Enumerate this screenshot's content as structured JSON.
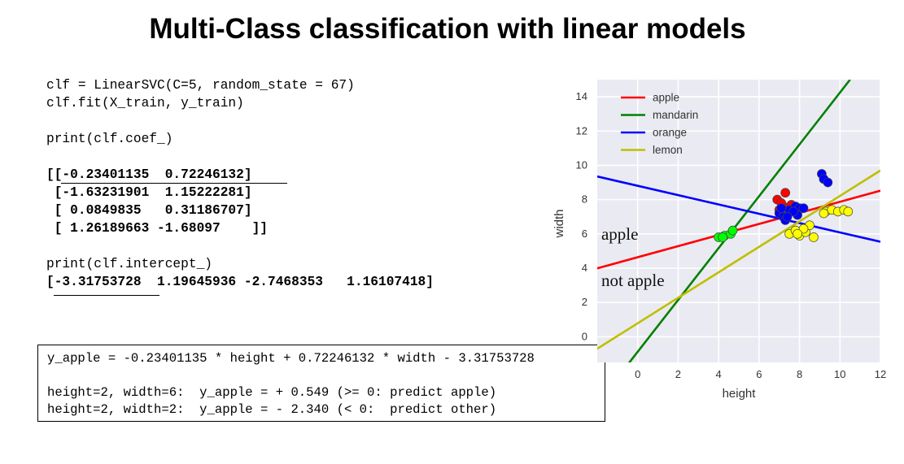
{
  "title": "Multi-Class classification with linear models",
  "code_lines": [
    "clf = LinearSVC(C=5, random_state = 67)",
    "clf.fit(X_train, y_train)",
    "",
    "print(clf.coef_)",
    "",
    "[[-0.23401135  0.72246132]",
    " [-1.63231901  1.15222281]",
    " [ 0.0849835   0.31186707]",
    " [ 1.26189663 -1.68097    ]]",
    "",
    "print(clf.intercept_)",
    "[-3.31753728  1.19645936 -2.7468353   1.16107418]"
  ],
  "equation_lines": [
    "y_apple = -0.23401135 * height + 0.72246132 * width - 3.31753728",
    "",
    "height=2, width=6:  y_apple = + 0.549 (>= 0: predict apple)",
    "height=2, width=2:  y_apple = - 2.340 (< 0:  predict other)"
  ],
  "chart_data": {
    "type": "scatter",
    "xlabel": "height",
    "ylabel": "width",
    "xlim": [
      -2.0,
      12.0
    ],
    "ylim": [
      -1.5,
      15.0
    ],
    "xticks": [
      "0",
      "2",
      "4",
      "6",
      "8",
      "10",
      "12"
    ],
    "xtick_values": [
      0,
      2,
      4,
      6,
      8,
      10,
      12
    ],
    "yticks": [
      "0",
      "2",
      "4",
      "6",
      "8",
      "10",
      "12",
      "14"
    ],
    "ytick_values": [
      0,
      2,
      4,
      6,
      8,
      10,
      12,
      14
    ],
    "grid": true,
    "legend_position": "top-left",
    "background": "#eaeaf2",
    "series": [
      {
        "name": "apple",
        "color": "#ff0000",
        "line": [
          [
            -2.0,
            3.99
          ],
          [
            12.0,
            8.52
          ]
        ],
        "points": [
          [
            6.9,
            8.0
          ],
          [
            7.3,
            8.4
          ],
          [
            7.2,
            7.6
          ],
          [
            7.4,
            7.2
          ],
          [
            7.0,
            7.4
          ],
          [
            7.6,
            7.7
          ],
          [
            7.1,
            7.8
          ],
          [
            7.5,
            7.3
          ]
        ]
      },
      {
        "name": "mandarin",
        "color": "#008000",
        "line": [
          [
            -1.8,
            -3.6
          ],
          [
            10.5,
            15.0
          ]
        ],
        "points": [
          [
            4.0,
            5.8
          ],
          [
            4.3,
            5.9
          ],
          [
            4.6,
            6.0
          ],
          [
            4.7,
            6.2
          ],
          [
            4.2,
            5.8
          ]
        ]
      },
      {
        "name": "orange",
        "color": "#0000ff",
        "line": [
          [
            -2.0,
            9.35
          ],
          [
            12.0,
            5.54
          ]
        ],
        "points": [
          [
            9.1,
            9.5
          ],
          [
            9.2,
            9.2
          ],
          [
            9.4,
            9.0
          ],
          [
            7.0,
            7.2
          ],
          [
            7.2,
            7.0
          ],
          [
            7.5,
            7.4
          ],
          [
            7.8,
            7.6
          ],
          [
            8.0,
            7.5
          ],
          [
            7.3,
            6.8
          ],
          [
            7.1,
            7.5
          ],
          [
            7.9,
            7.1
          ],
          [
            7.7,
            7.3
          ],
          [
            8.2,
            7.5
          ],
          [
            7.4,
            7.0
          ]
        ]
      },
      {
        "name": "lemon",
        "color": "#bfbf00",
        "line": [
          [
            -2.0,
            -0.7
          ],
          [
            12.0,
            9.7
          ]
        ],
        "points": [
          [
            9.3,
            7.3
          ],
          [
            9.6,
            7.4
          ],
          [
            9.9,
            7.3
          ],
          [
            10.2,
            7.4
          ],
          [
            10.4,
            7.3
          ],
          [
            9.2,
            7.2
          ],
          [
            7.5,
            6.0
          ],
          [
            7.8,
            6.2
          ],
          [
            8.0,
            5.9
          ],
          [
            8.3,
            6.1
          ],
          [
            8.5,
            6.5
          ],
          [
            8.7,
            5.8
          ],
          [
            8.2,
            6.3
          ],
          [
            7.9,
            6.0
          ]
        ]
      }
    ],
    "annotations": [
      {
        "text": "apple",
        "x": -1.8,
        "y": 6.0
      },
      {
        "text": "not apple",
        "x": -1.8,
        "y": 3.3
      }
    ]
  }
}
